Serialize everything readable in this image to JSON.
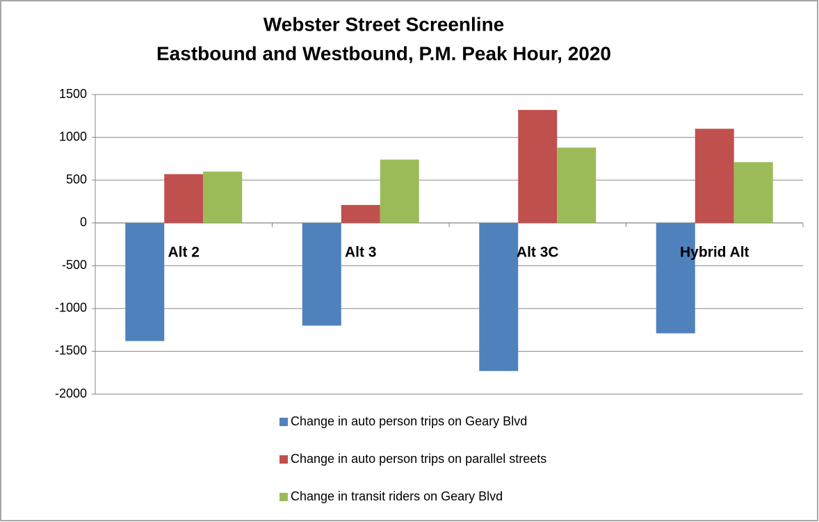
{
  "chart_data": {
    "type": "bar",
    "title": [
      "Webster Street Screenline",
      "Eastbound and Westbound, P.M. Peak Hour, 2020"
    ],
    "categories": [
      "Alt 2",
      "Alt 3",
      "Alt 3C",
      "Hybrid Alt"
    ],
    "series": [
      {
        "name": "Change in auto person trips on Geary Blvd",
        "color": "#4f81bd",
        "values": [
          -1380,
          -1200,
          -1730,
          -1290
        ]
      },
      {
        "name": "Change in auto person trips on parallel streets",
        "color": "#c0504d",
        "values": [
          570,
          210,
          1320,
          1100
        ]
      },
      {
        "name": "Change in transit riders on Geary Blvd",
        "color": "#9bbb59",
        "values": [
          600,
          740,
          880,
          710
        ]
      }
    ],
    "ylim": [
      -2000,
      1500
    ],
    "yticks": [
      -2000,
      -1500,
      -1000,
      -500,
      0,
      500,
      1000,
      1500
    ],
    "grid": true,
    "legend": "bottom"
  }
}
